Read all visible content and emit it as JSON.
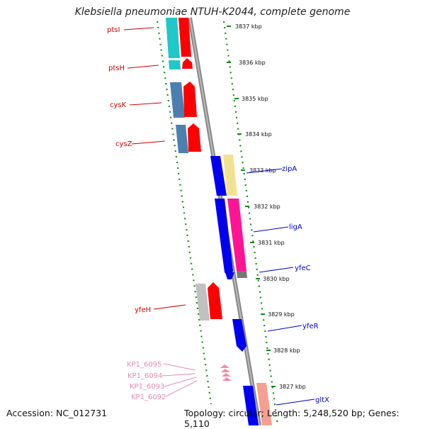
{
  "header": {
    "title": "Klebsiella pneumoniae NTUH-K2044, complete genome"
  },
  "footer": {
    "accession": "Accession: NC_012731",
    "summary": "Topology: circular; Length: 5,248,520 bp; Genes: 5,110"
  },
  "ticks": [
    "3837 kbp",
    "3836 kbp",
    "3835 kbp",
    "3834 kbp",
    "3833 kbp",
    "3832 kbp",
    "3831 kbp",
    "3830 kbp",
    "3829 kbp",
    "3828 kbp",
    "3827 kbp"
  ],
  "genes_left": [
    "ptsI",
    "ptsH",
    "cysK",
    "cysZ",
    "yfeH"
  ],
  "genes_right": [
    "zipA",
    "ligA",
    "yfeC",
    "yfeR",
    "gltX"
  ],
  "genes_minor": [
    "KP1_6095",
    "KP1_6094",
    "KP1_6093",
    "KP1_6092"
  ],
  "colors": {
    "strand_line": "#888888",
    "tick_green": "#1a8a1a",
    "cyan": "#20c8c8",
    "red": "#ff0000",
    "steel": "#4a7fb0",
    "blue": "#0000ee",
    "yellow": "#f2e290",
    "magenta": "#ff1493",
    "grey": "#c0c0c0",
    "pink": "#f08aa8",
    "salmon": "#f4a090"
  }
}
